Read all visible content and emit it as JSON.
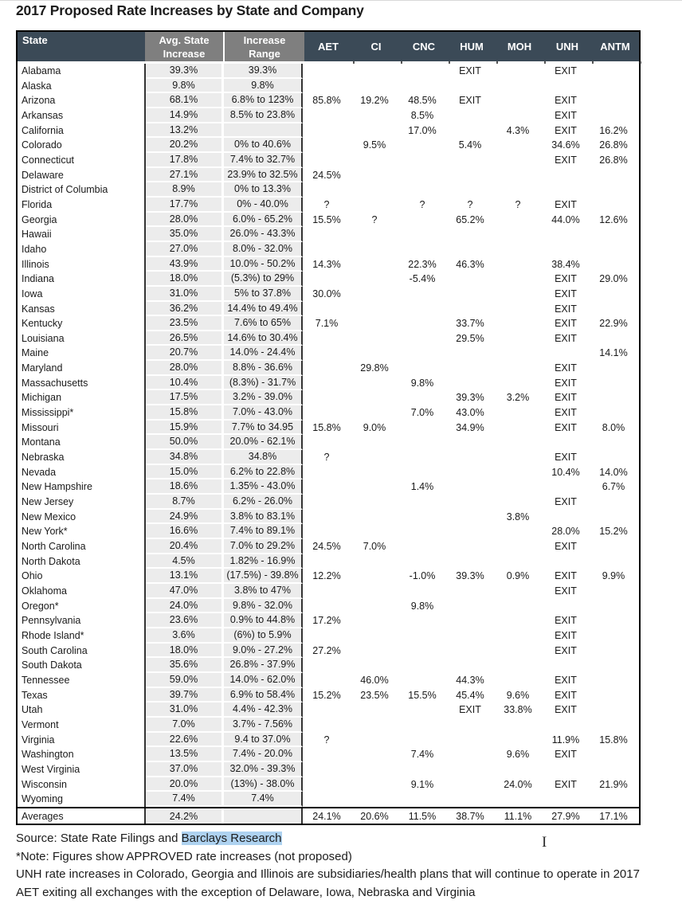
{
  "title": "2017 Proposed Rate Increases by State and Company",
  "colors": {
    "header_bg": "#3b4a57",
    "header_gray": "#7f7f7f",
    "cell_gray": "#ececec",
    "highlight": "#aed2f0"
  },
  "table": {
    "header": {
      "state": "State",
      "avg_line1": "Avg. State",
      "avg_line2": "Increase",
      "range_line1": "Increase",
      "range_line2": "Range",
      "companies": [
        "AET",
        "CI",
        "CNC",
        "HUM",
        "MOH",
        "UNH",
        "ANTM"
      ]
    },
    "rows": [
      {
        "state": "Alabama",
        "avg": "39.3%",
        "range": "39.3%",
        "cells": [
          "",
          "",
          "",
          "EXIT",
          "",
          "EXIT",
          ""
        ]
      },
      {
        "state": "Alaska",
        "avg": "9.8%",
        "range": "9.8%",
        "cells": [
          "",
          "",
          "",
          "",
          "",
          "",
          ""
        ]
      },
      {
        "state": "Arizona",
        "avg": "68.1%",
        "range": "6.8% to 123%",
        "cells": [
          "85.8%",
          "19.2%",
          "48.5%",
          "EXIT",
          "",
          "EXIT",
          ""
        ]
      },
      {
        "state": "Arkansas",
        "avg": "14.9%",
        "range": "8.5% to 23.8%",
        "cells": [
          "",
          "",
          "8.5%",
          "",
          "",
          "EXIT",
          ""
        ]
      },
      {
        "state": "California",
        "avg": "13.2%",
        "range": "",
        "cells": [
          "",
          "",
          "17.0%",
          "",
          "4.3%",
          "EXIT",
          "16.2%"
        ]
      },
      {
        "state": "Colorado",
        "avg": "20.2%",
        "range": "0% to 40.6%",
        "cells": [
          "",
          "9.5%",
          "",
          "5.4%",
          "",
          "34.6%",
          "26.8%"
        ]
      },
      {
        "state": "Connecticut",
        "avg": "17.8%",
        "range": "7.4% to 32.7%",
        "cells": [
          "",
          "",
          "",
          "",
          "",
          "EXIT",
          "26.8%"
        ]
      },
      {
        "state": "Delaware",
        "avg": "27.1%",
        "range": "23.9% to 32.5%",
        "cells": [
          "24.5%",
          "",
          "",
          "",
          "",
          "",
          ""
        ]
      },
      {
        "state": "District of Columbia",
        "avg": "8.9%",
        "range": "0% to 13.3%",
        "cells": [
          "",
          "",
          "",
          "",
          "",
          "",
          ""
        ]
      },
      {
        "state": "Florida",
        "avg": "17.7%",
        "range": "0% - 40.0%",
        "cells": [
          "?",
          "",
          "?",
          "?",
          "?",
          "EXIT",
          ""
        ]
      },
      {
        "state": "Georgia",
        "avg": "28.0%",
        "range": "6.0% - 65.2%",
        "cells": [
          "15.5%",
          "?",
          "",
          "65.2%",
          "",
          "44.0%",
          "12.6%"
        ]
      },
      {
        "state": "Hawaii",
        "avg": "35.0%",
        "range": "26.0% - 43.3%",
        "cells": [
          "",
          "",
          "",
          "",
          "",
          "",
          ""
        ]
      },
      {
        "state": "Idaho",
        "avg": "27.0%",
        "range": "8.0% - 32.0%",
        "cells": [
          "",
          "",
          "",
          "",
          "",
          "",
          ""
        ]
      },
      {
        "state": "Illinois",
        "avg": "43.9%",
        "range": "10.0% - 50.2%",
        "cells": [
          "14.3%",
          "",
          "22.3%",
          "46.3%",
          "",
          "38.4%",
          ""
        ]
      },
      {
        "state": "Indiana",
        "avg": "18.0%",
        "range": "(5.3%) to 29%",
        "cells": [
          "",
          "",
          "-5.4%",
          "",
          "",
          "EXIT",
          "29.0%"
        ]
      },
      {
        "state": "Iowa",
        "avg": "31.0%",
        "range": "5% to 37.8%",
        "cells": [
          "30.0%",
          "",
          "",
          "",
          "",
          "EXIT",
          ""
        ]
      },
      {
        "state": "Kansas",
        "avg": "36.2%",
        "range": "14.4% to 49.4%",
        "cells": [
          "",
          "",
          "",
          "",
          "",
          "EXIT",
          ""
        ]
      },
      {
        "state": "Kentucky",
        "avg": "23.5%",
        "range": "7.6% to 65%",
        "cells": [
          "7.1%",
          "",
          "",
          "33.7%",
          "",
          "EXIT",
          "22.9%"
        ]
      },
      {
        "state": "Louisiana",
        "avg": "26.5%",
        "range": "14.6% to 30.4%",
        "cells": [
          "",
          "",
          "",
          "29.5%",
          "",
          "EXIT",
          ""
        ]
      },
      {
        "state": "Maine",
        "avg": "20.7%",
        "range": "14.0% - 24.4%",
        "cells": [
          "",
          "",
          "",
          "",
          "",
          "",
          "14.1%"
        ]
      },
      {
        "state": "Maryland",
        "avg": "28.0%",
        "range": "8.8% - 36.6%",
        "cells": [
          "",
          "29.8%",
          "",
          "",
          "",
          "EXIT",
          ""
        ]
      },
      {
        "state": "Massachusetts",
        "avg": "10.4%",
        "range": "(8.3%) - 31.7%",
        "cells": [
          "",
          "",
          "9.8%",
          "",
          "",
          "EXIT",
          ""
        ]
      },
      {
        "state": "Michigan",
        "avg": "17.5%",
        "range": "3.2% - 39.0%",
        "cells": [
          "",
          "",
          "",
          "39.3%",
          "3.2%",
          "EXIT",
          ""
        ]
      },
      {
        "state": "Mississippi*",
        "avg": "15.8%",
        "range": "7.0% - 43.0%",
        "cells": [
          "",
          "",
          "7.0%",
          "43.0%",
          "",
          "EXIT",
          ""
        ]
      },
      {
        "state": "Missouri",
        "avg": "15.9%",
        "range": "7.7% to 34.95",
        "cells": [
          "15.8%",
          "9.0%",
          "",
          "34.9%",
          "",
          "EXIT",
          "8.0%"
        ]
      },
      {
        "state": "Montana",
        "avg": "50.0%",
        "range": "20.0% - 62.1%",
        "cells": [
          "",
          "",
          "",
          "",
          "",
          "",
          ""
        ]
      },
      {
        "state": "Nebraska",
        "avg": "34.8%",
        "range": "34.8%",
        "cells": [
          "?",
          "",
          "",
          "",
          "",
          "EXIT",
          ""
        ]
      },
      {
        "state": "Nevada",
        "avg": "15.0%",
        "range": "6.2% to 22.8%",
        "cells": [
          "",
          "",
          "",
          "",
          "",
          "10.4%",
          "14.0%"
        ]
      },
      {
        "state": "New Hampshire",
        "avg": "18.6%",
        "range": "1.35% - 43.0%",
        "cells": [
          "",
          "",
          "1.4%",
          "",
          "",
          "",
          "6.7%"
        ]
      },
      {
        "state": "New Jersey",
        "avg": "8.7%",
        "range": "6.2% - 26.0%",
        "cells": [
          "",
          "",
          "",
          "",
          "",
          "EXIT",
          ""
        ]
      },
      {
        "state": "New Mexico",
        "avg": "24.9%",
        "range": "3.8% to 83.1%",
        "cells": [
          "",
          "",
          "",
          "",
          "3.8%",
          "",
          ""
        ]
      },
      {
        "state": "New York*",
        "avg": "16.6%",
        "range": "7.4% to 89.1%",
        "cells": [
          "",
          "",
          "",
          "",
          "",
          "28.0%",
          "15.2%"
        ]
      },
      {
        "state": "North Carolina",
        "avg": "20.4%",
        "range": "7.0% to 29.2%",
        "cells": [
          "24.5%",
          "7.0%",
          "",
          "",
          "",
          "EXIT",
          ""
        ]
      },
      {
        "state": "North Dakota",
        "avg": "4.5%",
        "range": "1.82% - 16.9%",
        "cells": [
          "",
          "",
          "",
          "",
          "",
          "",
          ""
        ]
      },
      {
        "state": "Ohio",
        "avg": "13.1%",
        "range": "(17.5%) - 39.8%",
        "cells": [
          "12.2%",
          "",
          "-1.0%",
          "39.3%",
          "0.9%",
          "EXIT",
          "9.9%"
        ]
      },
      {
        "state": "Oklahoma",
        "avg": "47.0%",
        "range": "3.8% to 47%",
        "cells": [
          "",
          "",
          "",
          "",
          "",
          "EXIT",
          ""
        ]
      },
      {
        "state": "Oregon*",
        "avg": "24.0%",
        "range": "9.8% - 32.0%",
        "cells": [
          "",
          "",
          "9.8%",
          "",
          "",
          "",
          ""
        ]
      },
      {
        "state": "Pennsylvania",
        "avg": "23.6%",
        "range": "0.9% to 44.8%",
        "cells": [
          "17.2%",
          "",
          "",
          "",
          "",
          "EXIT",
          ""
        ]
      },
      {
        "state": "Rhode Island*",
        "avg": "3.6%",
        "range": "(6%) to 5.9%",
        "cells": [
          "",
          "",
          "",
          "",
          "",
          "EXIT",
          ""
        ]
      },
      {
        "state": "South Carolina",
        "avg": "18.0%",
        "range": "9.0% - 27.2%",
        "cells": [
          "27.2%",
          "",
          "",
          "",
          "",
          "EXIT",
          ""
        ]
      },
      {
        "state": "South Dakota",
        "avg": "35.6%",
        "range": "26.8% - 37.9%",
        "cells": [
          "",
          "",
          "",
          "",
          "",
          "",
          ""
        ]
      },
      {
        "state": "Tennessee",
        "avg": "59.0%",
        "range": "14.0% - 62.0%",
        "cells": [
          "",
          "46.0%",
          "",
          "44.3%",
          "",
          "EXIT",
          ""
        ]
      },
      {
        "state": "Texas",
        "avg": "39.7%",
        "range": "6.9% to 58.4%",
        "cells": [
          "15.2%",
          "23.5%",
          "15.5%",
          "45.4%",
          "9.6%",
          "EXIT",
          ""
        ]
      },
      {
        "state": "Utah",
        "avg": "31.0%",
        "range": "4.4% - 42.3%",
        "cells": [
          "",
          "",
          "",
          "EXIT",
          "33.8%",
          "EXIT",
          ""
        ]
      },
      {
        "state": "Vermont",
        "avg": "7.0%",
        "range": "3.7% - 7.56%",
        "cells": [
          "",
          "",
          "",
          "",
          "",
          "",
          ""
        ]
      },
      {
        "state": "Virginia",
        "avg": "22.6%",
        "range": "9.4 to 37.0%",
        "cells": [
          "?",
          "",
          "",
          "",
          "",
          "11.9%",
          "15.8%"
        ]
      },
      {
        "state": "Washington",
        "avg": "13.5%",
        "range": "7.4% - 20.0%",
        "cells": [
          "",
          "",
          "7.4%",
          "",
          "9.6%",
          "EXIT",
          ""
        ]
      },
      {
        "state": "West Virginia",
        "avg": "37.0%",
        "range": "32.0% - 39.3%",
        "cells": [
          "",
          "",
          "",
          "",
          "",
          "",
          ""
        ]
      },
      {
        "state": "Wisconsin",
        "avg": "20.0%",
        "range": "(13%) - 38.0%",
        "cells": [
          "",
          "",
          "9.1%",
          "",
          "24.0%",
          "EXIT",
          "21.9%"
        ]
      },
      {
        "state": "Wyoming",
        "avg": "7.4%",
        "range": "7.4%",
        "cells": [
          "",
          "",
          "",
          "",
          "",
          "",
          ""
        ]
      }
    ],
    "averages": {
      "state": "Averages",
      "avg": "24.2%",
      "range": "",
      "cells": [
        "24.1%",
        "20.6%",
        "11.5%",
        "38.7%",
        "11.1%",
        "27.9%",
        "17.1%"
      ]
    }
  },
  "footer": {
    "source_prefix": "Source: State Rate Filings and ",
    "source_highlight": "Barclays Research",
    "note_approved": "*Note: Figures show APPROVED rate increases (not proposed)",
    "note_unh": "UNH rate increases in Colorado, Georgia and Illinois are subsidiaries/health plans that will continue to operate in 2017",
    "note_aet": "AET exiting all exchanges with the exception of Delaware, Iowa, Nebraska and Virginia"
  }
}
